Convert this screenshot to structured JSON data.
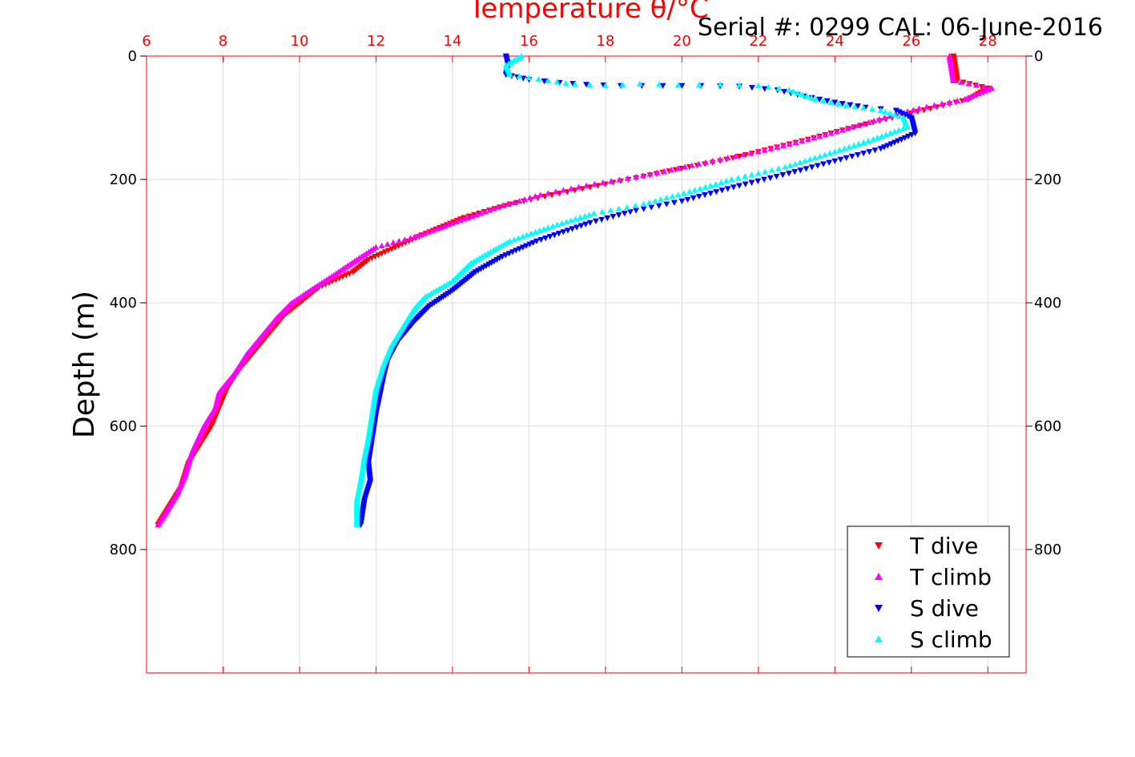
{
  "chart_data": {
    "type": "scatter",
    "title": "Temperature θ/°C",
    "annotation": "Serial #: 0299 CAL: 06-June-2016",
    "xlabel": "Temperature θ/°C",
    "ylabel": "Depth (m)",
    "xlim": [
      6,
      29
    ],
    "ylim": [
      1000,
      0
    ],
    "y_reversed": true,
    "x_ticks": [
      6,
      8,
      10,
      12,
      14,
      16,
      18,
      20,
      22,
      24,
      26,
      28
    ],
    "y_ticks": [
      0,
      200,
      400,
      600,
      800
    ],
    "grid": true,
    "legend_position": "bottom-right",
    "colors": {
      "title": "#ff0000",
      "x_axis": "#ff0000",
      "y_axis": "#000000",
      "grid": "#dddddd"
    },
    "series": [
      {
        "name": "T dive",
        "color": "#ff0000",
        "marker": "triangle-down",
        "points": [
          [
            27.1,
            0
          ],
          [
            27.15,
            20
          ],
          [
            27.2,
            40
          ],
          [
            28.0,
            52
          ],
          [
            27.5,
            70
          ],
          [
            26.5,
            85
          ],
          [
            25.5,
            100
          ],
          [
            24.5,
            115
          ],
          [
            23.3,
            135
          ],
          [
            22.0,
            155
          ],
          [
            21.0,
            170
          ],
          [
            20.0,
            182
          ],
          [
            19.0,
            195
          ],
          [
            17.8,
            210
          ],
          [
            16.6,
            225
          ],
          [
            15.5,
            240
          ],
          [
            14.3,
            262
          ],
          [
            13.4,
            285
          ],
          [
            12.5,
            310
          ],
          [
            11.8,
            330
          ],
          [
            11.4,
            350
          ],
          [
            10.5,
            375
          ],
          [
            10.0,
            400
          ],
          [
            9.6,
            420
          ],
          [
            9.2,
            450
          ],
          [
            8.8,
            480
          ],
          [
            8.4,
            510
          ],
          [
            8.1,
            540
          ],
          [
            7.9,
            570
          ],
          [
            7.7,
            600
          ],
          [
            7.4,
            630
          ],
          [
            7.1,
            660
          ],
          [
            6.9,
            700
          ],
          [
            6.6,
            730
          ],
          [
            6.3,
            760
          ]
        ]
      },
      {
        "name": "T climb",
        "color": "#ff00ff",
        "marker": "triangle-up",
        "points": [
          [
            27.0,
            0
          ],
          [
            27.05,
            20
          ],
          [
            27.1,
            40
          ],
          [
            28.1,
            52
          ],
          [
            27.4,
            70
          ],
          [
            26.2,
            85
          ],
          [
            25.3,
            100
          ],
          [
            24.2,
            120
          ],
          [
            23.3,
            135
          ],
          [
            22.0,
            155
          ],
          [
            20.8,
            170
          ],
          [
            19.9,
            182
          ],
          [
            18.8,
            196
          ],
          [
            17.5,
            210
          ],
          [
            16.3,
            225
          ],
          [
            15.2,
            245
          ],
          [
            14.4,
            262
          ],
          [
            13.6,
            280
          ],
          [
            12.9,
            295
          ],
          [
            12.0,
            310
          ],
          [
            11.5,
            330
          ],
          [
            10.9,
            355
          ],
          [
            10.4,
            375
          ],
          [
            9.8,
            400
          ],
          [
            9.4,
            425
          ],
          [
            9.0,
            455
          ],
          [
            8.6,
            485
          ],
          [
            8.3,
            515
          ],
          [
            7.9,
            545
          ],
          [
            7.8,
            570
          ],
          [
            7.5,
            600
          ],
          [
            7.2,
            640
          ],
          [
            7.0,
            680
          ],
          [
            6.8,
            710
          ],
          [
            6.5,
            740
          ],
          [
            6.3,
            760
          ]
        ]
      },
      {
        "name": "S dive",
        "color": "#0000ff",
        "marker": "triangle-down",
        "points": [
          [
            15.4,
            0
          ],
          [
            15.45,
            15
          ],
          [
            15.4,
            30
          ],
          [
            16.0,
            38
          ],
          [
            16.8,
            43
          ],
          [
            17.5,
            46
          ],
          [
            18.4,
            48
          ],
          [
            19.5,
            48
          ],
          [
            20.5,
            48
          ],
          [
            21.5,
            49
          ],
          [
            22.5,
            55
          ],
          [
            23.2,
            65
          ],
          [
            24.0,
            75
          ],
          [
            24.8,
            83
          ],
          [
            25.6,
            88
          ],
          [
            26.0,
            100
          ],
          [
            26.1,
            125
          ],
          [
            25.2,
            150
          ],
          [
            24.0,
            170
          ],
          [
            22.8,
            190
          ],
          [
            21.5,
            210
          ],
          [
            20.0,
            235
          ],
          [
            18.8,
            250
          ],
          [
            17.6,
            270
          ],
          [
            16.2,
            300
          ],
          [
            15.3,
            325
          ],
          [
            14.6,
            350
          ],
          [
            14.0,
            380
          ],
          [
            13.4,
            405
          ],
          [
            13.0,
            430
          ],
          [
            12.6,
            460
          ],
          [
            12.3,
            495
          ],
          [
            12.2,
            520
          ],
          [
            12.1,
            550
          ],
          [
            12.0,
            580
          ],
          [
            11.9,
            620
          ],
          [
            11.8,
            660
          ],
          [
            11.85,
            690
          ],
          [
            11.7,
            720
          ],
          [
            11.6,
            760
          ]
        ]
      },
      {
        "name": "S climb",
        "color": "#00ffff",
        "marker": "triangle-up",
        "points": [
          [
            15.8,
            0
          ],
          [
            15.4,
            15
          ],
          [
            15.5,
            30
          ],
          [
            16.5,
            40
          ],
          [
            17.2,
            46
          ],
          [
            18.0,
            48
          ],
          [
            18.9,
            45
          ],
          [
            19.9,
            47
          ],
          [
            21.0,
            46
          ],
          [
            22.0,
            48
          ],
          [
            22.8,
            55
          ],
          [
            23.5,
            70
          ],
          [
            24.3,
            80
          ],
          [
            25.2,
            88
          ],
          [
            25.8,
            100
          ],
          [
            25.9,
            115
          ],
          [
            25.0,
            135
          ],
          [
            24.0,
            155
          ],
          [
            22.7,
            180
          ],
          [
            21.3,
            200
          ],
          [
            20.2,
            220
          ],
          [
            19.0,
            240
          ],
          [
            17.7,
            255
          ],
          [
            16.5,
            278
          ],
          [
            15.5,
            300
          ],
          [
            14.5,
            335
          ],
          [
            14.0,
            365
          ],
          [
            13.3,
            390
          ],
          [
            13.0,
            410
          ],
          [
            12.7,
            440
          ],
          [
            12.4,
            470
          ],
          [
            12.2,
            500
          ],
          [
            12.0,
            540
          ],
          [
            11.9,
            580
          ],
          [
            11.8,
            620
          ],
          [
            11.7,
            650
          ],
          [
            11.6,
            690
          ],
          [
            11.5,
            720
          ],
          [
            11.5,
            760
          ]
        ]
      }
    ]
  }
}
